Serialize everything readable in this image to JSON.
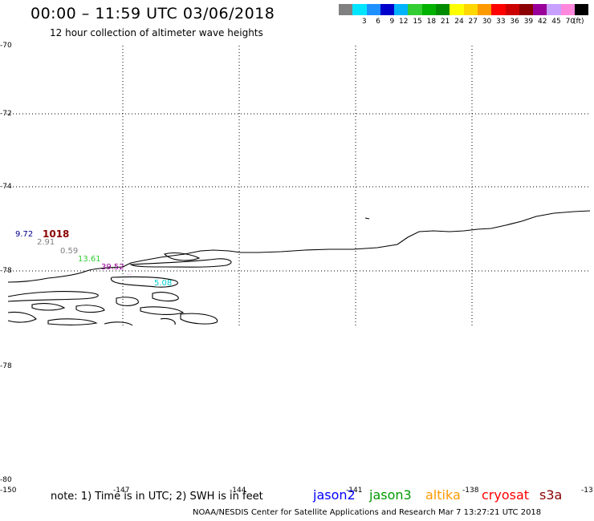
{
  "header": {
    "title": "00:00 – 11:59 UTC 03/06/2018",
    "subtitle": "12 hour collection of altimeter wave heights"
  },
  "scale": {
    "unit": "(ft)",
    "bins": [
      {
        "color": "#808080",
        "label": ""
      },
      {
        "color": "#00e5ff",
        "label": "3"
      },
      {
        "color": "#1e90ff",
        "label": "6"
      },
      {
        "color": "#0000cd",
        "label": "9"
      },
      {
        "color": "#00b3ff",
        "label": "12"
      },
      {
        "color": "#32cd32",
        "label": "15"
      },
      {
        "color": "#00b200",
        "label": "18"
      },
      {
        "color": "#008b00",
        "label": "21"
      },
      {
        "color": "#ffff00",
        "label": "24"
      },
      {
        "color": "#ffd700",
        "label": "27"
      },
      {
        "color": "#ff9900",
        "label": "30"
      },
      {
        "color": "#ff0000",
        "label": "33"
      },
      {
        "color": "#cc0000",
        "label": "36"
      },
      {
        "color": "#8b0000",
        "label": "39"
      },
      {
        "color": "#990099",
        "label": "42"
      },
      {
        "color": "#c8a0ff",
        "label": "45"
      },
      {
        "color": "#ff88dd",
        "label": "70"
      },
      {
        "color": "#000000",
        "label": ""
      }
    ]
  },
  "latitudes": [
    "-70",
    "-72",
    "-74",
    "-78",
    "-78",
    "-80"
  ],
  "longitudes": [
    "-150",
    "-147",
    "-144",
    "-141",
    "-138",
    "-13"
  ],
  "wave_heights": [
    {
      "value": "9.72",
      "color": "#00008b"
    },
    {
      "value": "1018",
      "color": "#8b0000"
    },
    {
      "value": "2.91",
      "color": "#808080"
    },
    {
      "value": "0.59",
      "color": "#808080"
    },
    {
      "value": "13.61",
      "color": "#32cd32"
    },
    {
      "value": "39.52",
      "color": "#990099"
    },
    {
      "value": "5.08",
      "color": "#00cccc"
    },
    {
      "value": "..",
      "color": "#ff88dd"
    }
  ],
  "footer": {
    "note": "note: 1) Time is in UTC; 2) SWH is in feet",
    "satellites": [
      {
        "name": "jason2",
        "color": "#0000ff"
      },
      {
        "name": "jason3",
        "color": "#009900"
      },
      {
        "name": "altika",
        "color": "#ff9900"
      },
      {
        "name": "cryosat",
        "color": "#ff0000"
      },
      {
        "name": "s3a",
        "color": "#8b0000"
      }
    ],
    "credit": "NOAA/NESDIS Center for Satellite Applications and Research   Mar  7 13:27:21 UTC 2018"
  }
}
